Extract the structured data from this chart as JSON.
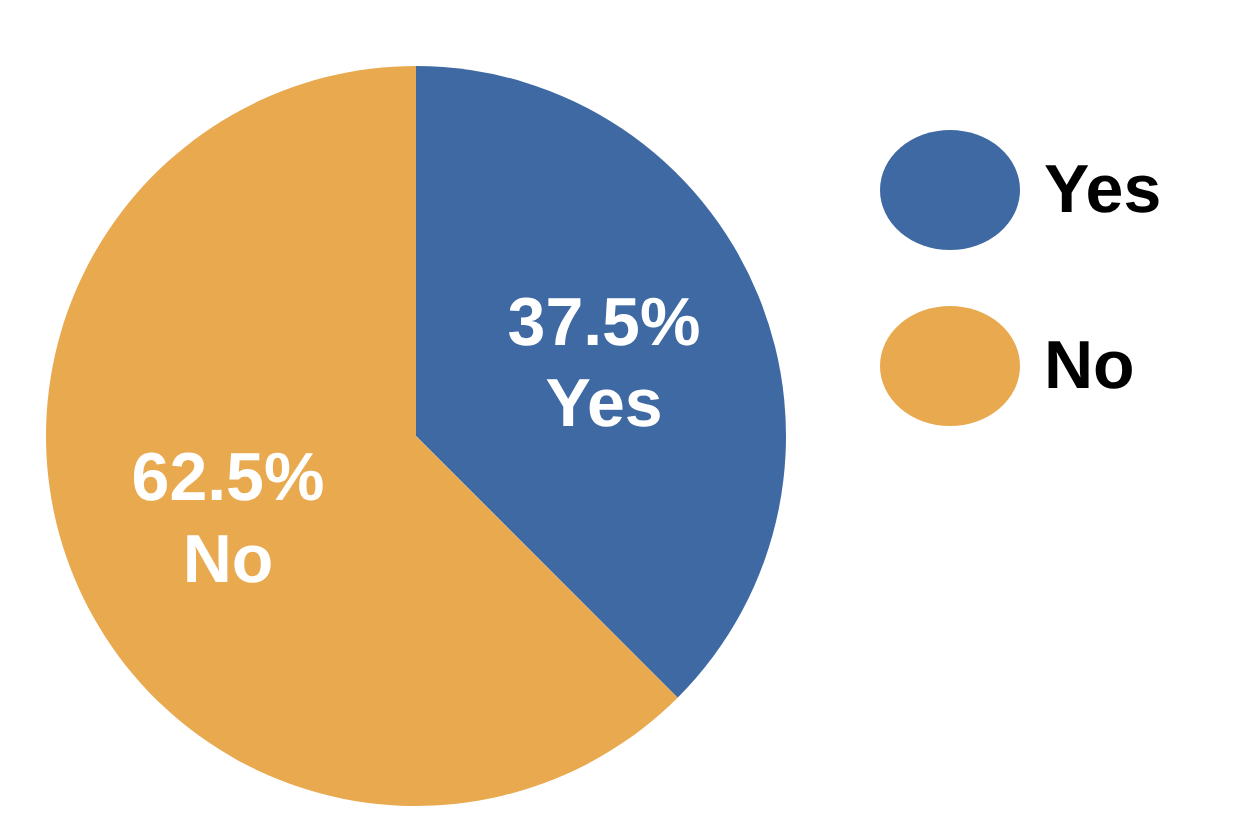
{
  "chart_data": {
    "type": "pie",
    "categories": [
      "Yes",
      "No"
    ],
    "values": [
      37.5,
      62.5
    ],
    "colors": [
      "#3f69a3",
      "#e8a94f"
    ],
    "value_labels": [
      "37.5%",
      "62.5%"
    ],
    "legend": "right"
  }
}
